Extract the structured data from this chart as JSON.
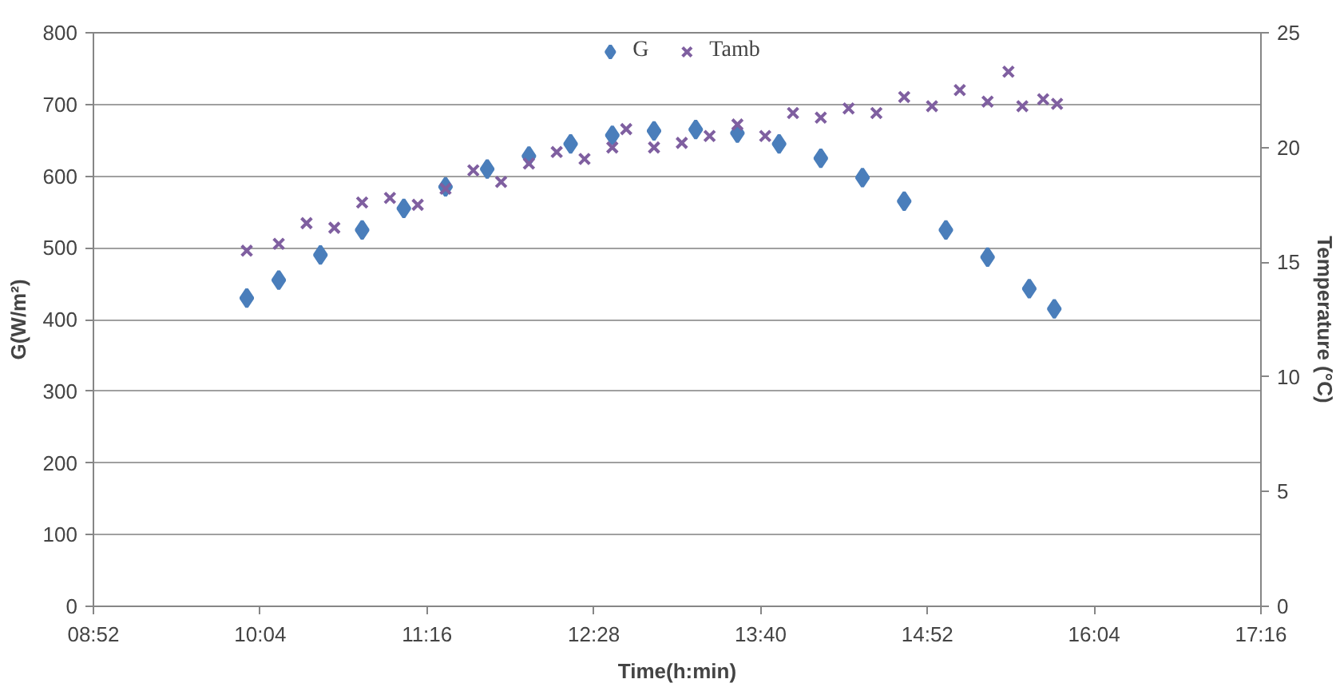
{
  "chart_data": {
    "type": "scatter",
    "xlabel": "Time(h:min)",
    "ylabel": "G(W/m²)",
    "y2label": "Temperature (°C)",
    "xlim": [
      8.8667,
      17.2667
    ],
    "xticks": [
      {
        "value": 8.8667,
        "label": "08:52"
      },
      {
        "value": 10.0667,
        "label": "10:04"
      },
      {
        "value": 11.2667,
        "label": "11:16"
      },
      {
        "value": 12.4667,
        "label": "12:28"
      },
      {
        "value": 13.6667,
        "label": "13:40"
      },
      {
        "value": 14.8667,
        "label": "14:52"
      },
      {
        "value": 16.0667,
        "label": "16:04"
      },
      {
        "value": 17.2667,
        "label": "17:16"
      }
    ],
    "ylim": [
      0,
      800
    ],
    "yticks": [
      0,
      100,
      200,
      300,
      400,
      500,
      600,
      700,
      800
    ],
    "y2lim": [
      0,
      25
    ],
    "y2ticks": [
      0,
      5,
      10,
      15,
      20,
      25
    ],
    "grid": "y",
    "legend": "top",
    "series": [
      {
        "name": "G",
        "color": "#4a7ebb",
        "marker": "diamond",
        "x": [
          9.97,
          10.2,
          10.5,
          10.8,
          11.1,
          11.4,
          11.7,
          12.0,
          12.3,
          12.6,
          12.9,
          13.2,
          13.5,
          13.8,
          14.1,
          14.4,
          14.7,
          15.0,
          15.3,
          15.6,
          15.78
        ],
        "values": [
          430,
          455,
          490,
          525,
          555,
          585,
          610,
          628,
          645,
          657,
          663,
          665,
          660,
          645,
          625,
          598,
          565,
          525,
          487,
          443,
          415
        ]
      },
      {
        "name": "Tamb",
        "color": "#7f5fa0",
        "marker": "cross",
        "axis": "y2",
        "x": [
          9.97,
          10.2,
          10.4,
          10.6,
          10.8,
          11.0,
          11.2,
          11.4,
          11.6,
          11.8,
          12.0,
          12.2,
          12.4,
          12.6,
          12.7,
          12.9,
          13.1,
          13.3,
          13.5,
          13.7,
          13.9,
          14.1,
          14.3,
          14.5,
          14.7,
          14.9,
          15.1,
          15.3,
          15.45,
          15.55,
          15.7,
          15.8
        ],
        "values": [
          15.5,
          15.8,
          16.7,
          16.5,
          17.6,
          17.8,
          17.5,
          18.2,
          19.0,
          18.5,
          19.3,
          19.8,
          19.5,
          20.0,
          20.8,
          20.0,
          20.2,
          20.5,
          21.0,
          20.5,
          21.5,
          21.3,
          21.7,
          21.5,
          22.2,
          21.8,
          22.5,
          22.0,
          23.3,
          21.8,
          22.1,
          21.9
        ]
      }
    ]
  }
}
